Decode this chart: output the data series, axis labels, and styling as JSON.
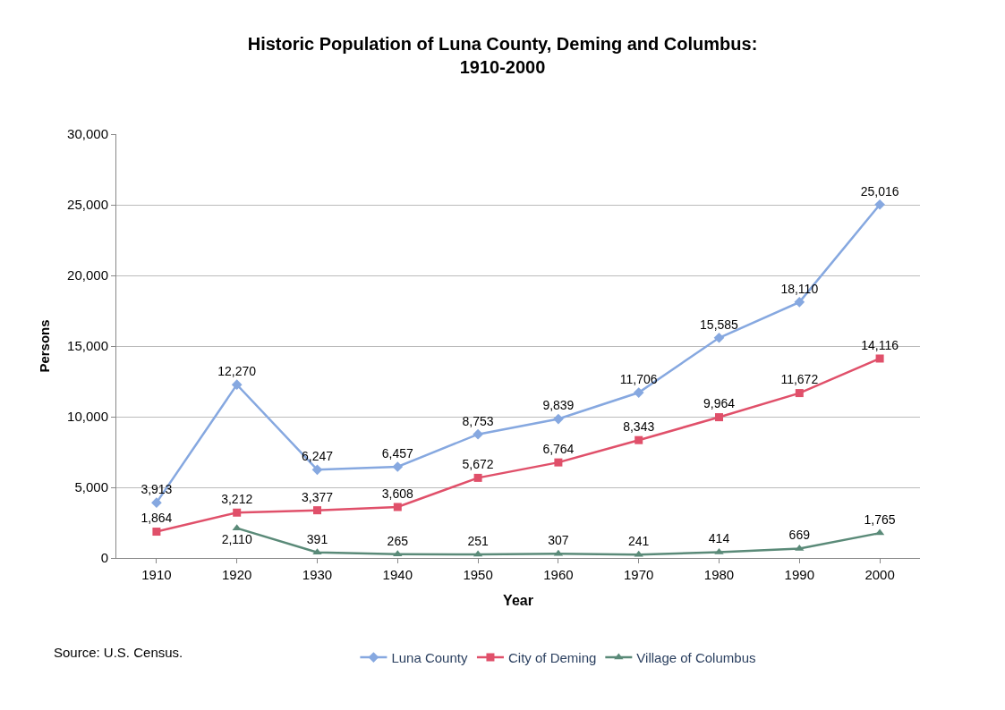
{
  "chart_data": {
    "type": "line",
    "title": "Historic Population of Luna County, Deming and Columbus:\n1910-2000",
    "xlabel": "Year",
    "ylabel": "Persons",
    "categories": [
      "1910",
      "1920",
      "1930",
      "1940",
      "1950",
      "1960",
      "1970",
      "1980",
      "1990",
      "2000"
    ],
    "series": [
      {
        "name": "Luna County",
        "color": "#86a8e0",
        "marker": "diamond",
        "values": [
          3913,
          12270,
          6247,
          6457,
          8753,
          9839,
          11706,
          15585,
          18110,
          25016
        ],
        "value_labels": [
          "3,913",
          "12,270",
          "6,247",
          "6,457",
          "8,753",
          "9,839",
          "11,706",
          "15,585",
          "18,110",
          "25,016"
        ]
      },
      {
        "name": "City of Deming",
        "color": "#e0506a",
        "marker": "square",
        "values": [
          1864,
          3212,
          3377,
          3608,
          5672,
          6764,
          8343,
          9964,
          11672,
          14116
        ],
        "value_labels": [
          "1,864",
          "3,212",
          "3,377",
          "3,608",
          "5,672",
          "6,764",
          "8,343",
          "9,964",
          "11,672",
          "14,116"
        ]
      },
      {
        "name": "Village of Columbus",
        "color": "#5a8a78",
        "marker": "triangle",
        "values": [
          null,
          2110,
          391,
          265,
          251,
          307,
          241,
          414,
          669,
          1765
        ],
        "value_labels": [
          null,
          "2,110",
          "391",
          "265",
          "251",
          "307",
          "241",
          "414",
          "669",
          "1,765"
        ]
      }
    ],
    "ylim": [
      0,
      30000
    ],
    "yticks": [
      0,
      {
        "value": 5000,
        "label": "5,000"
      },
      {
        "value": 10000,
        "label": "10,000"
      },
      {
        "value": 15000,
        "label": "15,000"
      },
      {
        "value": 20000,
        "label": "20,000"
      },
      {
        "value": 25000,
        "label": "25,000"
      },
      {
        "value": 30000,
        "label": "30,000"
      }
    ],
    "grid": "y",
    "legend": "bottom",
    "line_style": "solid",
    "annotations": [
      "Source: U.S. Census."
    ]
  }
}
